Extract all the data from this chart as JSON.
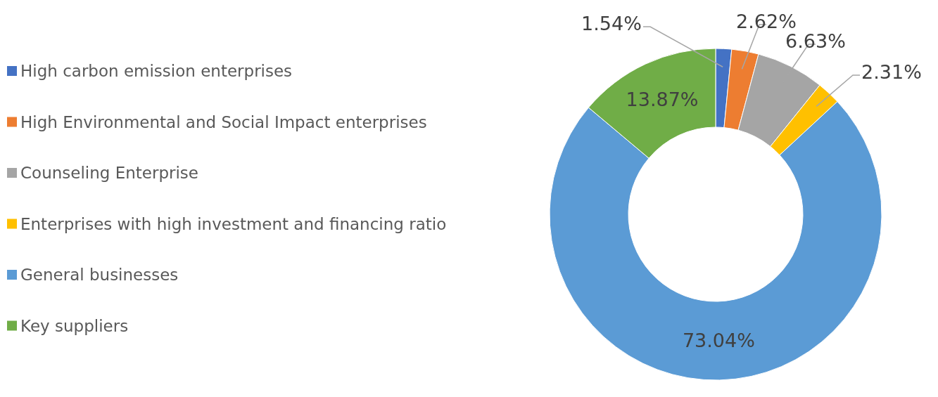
{
  "chart_data": {
    "type": "donut",
    "categories": [
      "High carbon emission enterprises",
      "High Environmental and Social Impact enterprises",
      "Counseling Enterprise",
      "Enterprises with high investment and financing ratio",
      "General businesses",
      "Key suppliers"
    ],
    "values": [
      1.54,
      2.62,
      6.63,
      2.31,
      73.04,
      13.87
    ],
    "colors": [
      "#4472c4",
      "#ed7d31",
      "#a5a5a5",
      "#ffc000",
      "#5b9bd5",
      "#70ad47"
    ],
    "value_labels": [
      "1.54%",
      "2.62%",
      "6.63%",
      "2.31%",
      "73.04%",
      "13.87%"
    ],
    "legend": "left"
  }
}
